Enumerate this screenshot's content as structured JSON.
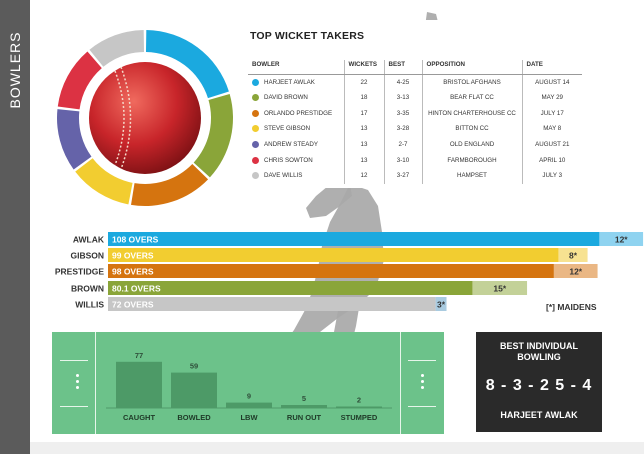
{
  "sidebar": {
    "title": "BOWLERS"
  },
  "table": {
    "title": "TOP WICKET TAKERS",
    "headers": [
      "BOWLER",
      "WICKETS",
      "BEST",
      "OPPOSITION",
      "DATE"
    ],
    "rows": [
      {
        "bowler": "HARJEET AWLAK",
        "wickets": "22",
        "best": "4-25",
        "opposition": "BRISTOL AFGHANS",
        "date": "AUGUST 14",
        "color": "#1ba9df"
      },
      {
        "bowler": "DAVID BROWN",
        "wickets": "18",
        "best": "3-13",
        "opposition": "BEAR FLAT CC",
        "date": "MAY 29",
        "color": "#8aa539"
      },
      {
        "bowler": "ORLANDO PRESTIDGE",
        "wickets": "17",
        "best": "3-35",
        "opposition": "HINTON CHARTERHOUSE CC",
        "date": "JULY 17",
        "color": "#d5740f"
      },
      {
        "bowler": "STEVE GIBSON",
        "wickets": "13",
        "best": "3-28",
        "opposition": "BITTON CC",
        "date": "MAY 8",
        "color": "#f2cd30"
      },
      {
        "bowler": "ANDREW STEADY",
        "wickets": "13",
        "best": "2-7",
        "opposition": "OLD ENGLAND",
        "date": "AUGUST 21",
        "color": "#6563a9"
      },
      {
        "bowler": "CHRIS SOWTON",
        "wickets": "13",
        "best": "3-10",
        "opposition": "FARMBOROUGH",
        "date": "APRIL 10",
        "color": "#dc3243"
      },
      {
        "bowler": "DAVE WILLIS",
        "wickets": "12",
        "best": "3-27",
        "opposition": "HAMPSET",
        "date": "JULY 3",
        "color": "#c6c6c6"
      }
    ]
  },
  "maidens_legend": "[*] MAIDENS",
  "best_individual": {
    "title_line1": "BEST INDIVIDUAL",
    "title_line2": "BOWLING",
    "figures": "8 - 3 - 2 5 - 4",
    "name": "HARJEET AWLAK"
  },
  "chart_data": [
    {
      "type": "pie",
      "labels": [
        "HARJEET AWLAK",
        "DAVID BROWN",
        "ORLANDO PRESTIDGE",
        "STEVE GIBSON",
        "ANDREW STEADY",
        "CHRIS SOWTON",
        "DAVE WILLIS"
      ],
      "values": [
        22,
        18,
        17,
        13,
        13,
        13,
        12
      ],
      "colors": [
        "#1ba9df",
        "#8aa539",
        "#d5740f",
        "#f2cd30",
        "#6563a9",
        "#dc3243",
        "#c6c6c6"
      ]
    },
    {
      "type": "bar",
      "orientation": "horizontal",
      "categories": [
        "AWLAK",
        "GIBSON",
        "PRESTIDGE",
        "BROWN",
        "WILLIS"
      ],
      "series": [
        {
          "name": "OVERS",
          "values": [
            108,
            99,
            98,
            80.1,
            72
          ],
          "labels": [
            "108 OVERS",
            "99 OVERS",
            "98 OVERS",
            "80.1 OVERS",
            "72 OVERS"
          ]
        },
        {
          "name": "MAIDENS",
          "values": [
            12,
            8,
            12,
            15,
            3
          ],
          "labels": [
            "12*",
            "8*",
            "12*",
            "15*",
            "3*"
          ]
        }
      ],
      "colors": [
        "#1ba9df",
        "#f2cd30",
        "#d5740f",
        "#8aa539",
        "#c6c6c6"
      ],
      "maiden_colors": [
        "#8fd3f0",
        "#f7e291",
        "#eab784",
        "#c3d198",
        "#a9cbe0"
      ]
    },
    {
      "type": "bar",
      "categories": [
        "CAUGHT",
        "BOWLED",
        "LBW",
        "RUN OUT",
        "STUMPED"
      ],
      "values": [
        77,
        59,
        9,
        5,
        2
      ],
      "labels": [
        "77",
        "59",
        "9",
        "5",
        "2"
      ]
    }
  ]
}
